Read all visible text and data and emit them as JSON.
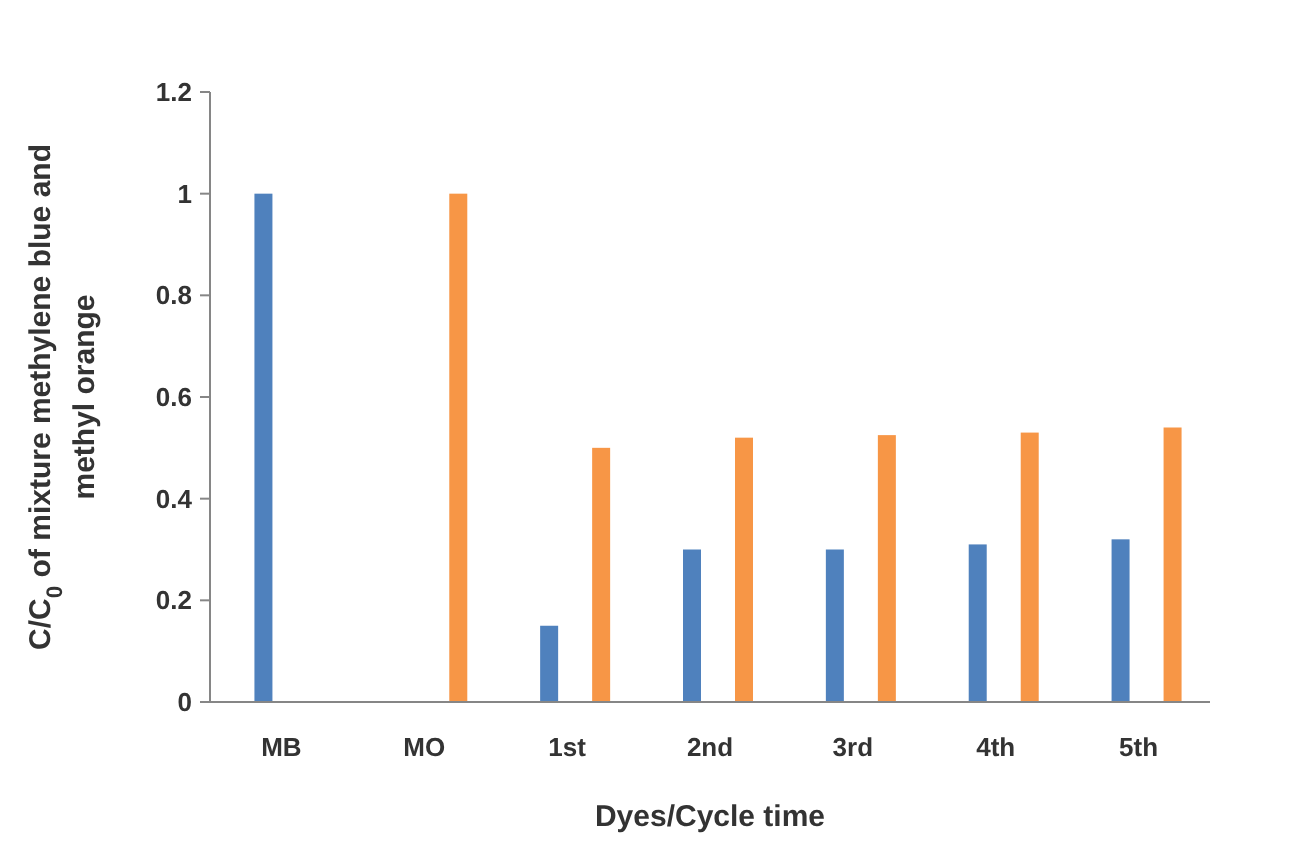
{
  "chart_data": {
    "type": "bar",
    "xlabel": "Dyes/Cycle time",
    "ylabel": "C/C$_{0}$ of mixture methylene blue and methyl orange",
    "categories": [
      "MB",
      "MO",
      "1st",
      "2nd",
      "3rd",
      "4th",
      "5th"
    ],
    "series": [
      {
        "color": "#4f81bd",
        "values": [
          1,
          null,
          0.15,
          0.3,
          0.3,
          0.31,
          0.32
        ]
      },
      {
        "color": "#f79646",
        "values": [
          null,
          1,
          0.5,
          0.52,
          0.525,
          0.53,
          0.54
        ]
      }
    ],
    "ylim": [
      0,
      1.2
    ],
    "yticks": [
      0,
      0.2,
      0.4,
      0.6,
      0.8,
      1,
      1.2
    ],
    "grid": false
  }
}
